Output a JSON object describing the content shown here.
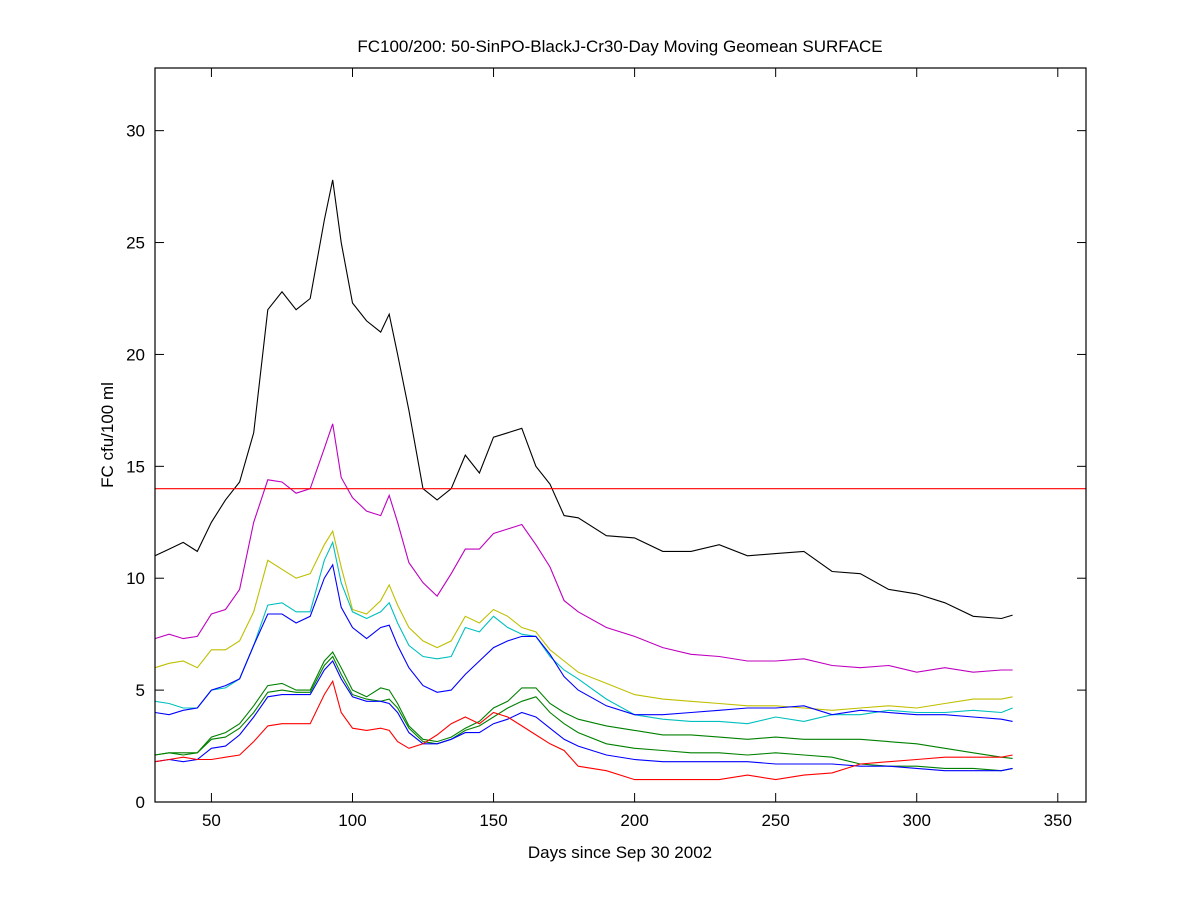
{
  "chart_data": {
    "type": "line",
    "title": "FC100/200: 50-SinPO-BlackJ-Cr30-Day Moving Geomean SURFACE",
    "xlabel": "Days since Sep 30 2002",
    "ylabel": "FC cfu/100 ml",
    "xlim": [
      30,
      360
    ],
    "ylim": [
      0,
      32.8
    ],
    "xticks": [
      50,
      100,
      150,
      200,
      250,
      300,
      350
    ],
    "yticks": [
      0,
      5,
      10,
      15,
      20,
      25,
      30
    ],
    "grid": false,
    "reference_line": {
      "y": 14,
      "color": "#ff0000"
    },
    "x": [
      30,
      35,
      40,
      45,
      50,
      55,
      60,
      65,
      70,
      75,
      80,
      85,
      90,
      93,
      96,
      100,
      105,
      110,
      113,
      116,
      120,
      125,
      130,
      135,
      140,
      145,
      150,
      155,
      160,
      165,
      170,
      175,
      180,
      190,
      200,
      210,
      220,
      230,
      240,
      250,
      260,
      270,
      280,
      290,
      300,
      310,
      320,
      330,
      334
    ],
    "series": [
      {
        "color": "#000000",
        "values": [
          11,
          11.3,
          11.6,
          11.2,
          12.5,
          13.5,
          14.3,
          16.5,
          22,
          22.8,
          22,
          22.5,
          26,
          27.8,
          25,
          22.3,
          21.5,
          21,
          21.8,
          20,
          17.5,
          14,
          13.5,
          14,
          15.5,
          14.7,
          16.3,
          16.5,
          16.7,
          15,
          14.2,
          12.8,
          12.7,
          11.9,
          11.8,
          11.2,
          11.2,
          11.5,
          11,
          11.1,
          11.2,
          10.3,
          10.2,
          9.5,
          9.3,
          8.9,
          8.3,
          8.2,
          8.35
        ]
      },
      {
        "color": "#bf00bf",
        "values": [
          7.3,
          7.5,
          7.3,
          7.4,
          8.4,
          8.6,
          9.5,
          12.5,
          14.4,
          14.3,
          13.8,
          14,
          15.8,
          16.9,
          14.5,
          13.6,
          13,
          12.8,
          13.7,
          12.5,
          10.7,
          9.8,
          9.2,
          10.2,
          11.3,
          11.3,
          12,
          12.2,
          12.4,
          11.5,
          10.5,
          9,
          8.5,
          7.8,
          7.4,
          6.9,
          6.6,
          6.5,
          6.3,
          6.3,
          6.4,
          6.1,
          6,
          6.1,
          5.8,
          6,
          5.8,
          5.9,
          5.9
        ]
      },
      {
        "color": "#bfbf00",
        "values": [
          6,
          6.2,
          6.3,
          6,
          6.8,
          6.8,
          7.2,
          8.5,
          10.8,
          10.4,
          10,
          10.2,
          11.5,
          12.1,
          10.5,
          8.6,
          8.4,
          9,
          9.7,
          8.8,
          7.8,
          7.2,
          6.9,
          7.2,
          8.3,
          8,
          8.6,
          8.3,
          7.8,
          7.6,
          6.8,
          6.3,
          5.8,
          5.3,
          4.8,
          4.6,
          4.5,
          4.4,
          4.3,
          4.3,
          4.2,
          4.1,
          4.2,
          4.3,
          4.2,
          4.4,
          4.6,
          4.6,
          4.7
        ]
      },
      {
        "color": "#00bfbf",
        "values": [
          4.5,
          4.4,
          4.2,
          4.2,
          5,
          5.1,
          5.5,
          7,
          8.8,
          8.9,
          8.5,
          8.5,
          10.8,
          11.6,
          9.8,
          8.5,
          8.2,
          8.5,
          8.9,
          8,
          7,
          6.5,
          6.4,
          6.5,
          7.8,
          7.6,
          8.3,
          7.8,
          7.5,
          7.4,
          6.5,
          5.9,
          5.5,
          4.6,
          3.9,
          3.7,
          3.6,
          3.6,
          3.5,
          3.8,
          3.6,
          3.9,
          3.9,
          4.1,
          4,
          4,
          4.1,
          4,
          4.2
        ]
      },
      {
        "color": "#0000ff",
        "values": [
          4,
          3.9,
          4.1,
          4.2,
          5,
          5.2,
          5.5,
          7,
          8.4,
          8.4,
          8,
          8.3,
          10,
          10.6,
          8.7,
          7.8,
          7.3,
          7.8,
          7.9,
          7,
          6,
          5.2,
          4.9,
          5,
          5.7,
          6.3,
          6.9,
          7.2,
          7.4,
          7.4,
          6.6,
          5.6,
          5,
          4.3,
          3.9,
          3.9,
          4,
          4.1,
          4.2,
          4.2,
          4.3,
          3.9,
          4.1,
          4,
          3.9,
          3.9,
          3.8,
          3.7,
          3.6
        ]
      },
      {
        "color": "#008000",
        "values": [
          2.1,
          2.2,
          2.2,
          2.2,
          2.9,
          3.1,
          3.5,
          4.3,
          5.2,
          5.3,
          5,
          5,
          6.3,
          6.7,
          6,
          5,
          4.7,
          5.1,
          5,
          4.4,
          3.4,
          2.8,
          2.7,
          2.9,
          3.3,
          3.6,
          4.2,
          4.5,
          5.1,
          5.1,
          4.4,
          4,
          3.7,
          3.4,
          3.2,
          3,
          3,
          2.9,
          2.8,
          2.9,
          2.8,
          2.8,
          2.8,
          2.7,
          2.6,
          2.4,
          2.2,
          2,
          1.95
        ]
      },
      {
        "color": "#008000",
        "values": [
          2.1,
          2.2,
          2.1,
          2.2,
          2.8,
          2.9,
          3.3,
          4,
          4.9,
          5,
          4.9,
          4.9,
          6.1,
          6.5,
          5.7,
          4.8,
          4.6,
          4.5,
          4.6,
          4.2,
          3.3,
          2.7,
          2.6,
          2.8,
          3.2,
          3.4,
          3.8,
          4.2,
          4.5,
          4.7,
          4,
          3.5,
          3.1,
          2.6,
          2.4,
          2.3,
          2.2,
          2.2,
          2.1,
          2.2,
          2.1,
          2,
          1.7,
          1.6,
          1.6,
          1.5,
          1.5,
          1.4,
          1.5
        ]
      },
      {
        "color": "#0000ff",
        "values": [
          1.8,
          1.9,
          1.8,
          1.9,
          2.4,
          2.5,
          3,
          3.8,
          4.7,
          4.8,
          4.8,
          4.8,
          5.9,
          6.3,
          5.5,
          4.7,
          4.5,
          4.5,
          4.4,
          4,
          3.1,
          2.6,
          2.6,
          2.8,
          3.1,
          3.1,
          3.5,
          3.7,
          4,
          3.8,
          3.3,
          2.8,
          2.5,
          2.1,
          1.9,
          1.8,
          1.8,
          1.8,
          1.8,
          1.7,
          1.7,
          1.7,
          1.6,
          1.6,
          1.5,
          1.4,
          1.4,
          1.4,
          1.5
        ]
      },
      {
        "color": "#ff0000",
        "values": [
          1.8,
          1.9,
          2,
          1.9,
          1.9,
          2,
          2.1,
          2.7,
          3.4,
          3.5,
          3.5,
          3.5,
          4.8,
          5.4,
          4,
          3.3,
          3.2,
          3.3,
          3.2,
          2.7,
          2.4,
          2.6,
          3,
          3.5,
          3.8,
          3.5,
          4,
          3.8,
          3.4,
          3,
          2.6,
          2.3,
          1.6,
          1.4,
          1,
          1,
          1,
          1,
          1.2,
          1,
          1.2,
          1.3,
          1.7,
          1.8,
          1.9,
          2,
          2,
          2,
          2.1
        ]
      }
    ]
  }
}
